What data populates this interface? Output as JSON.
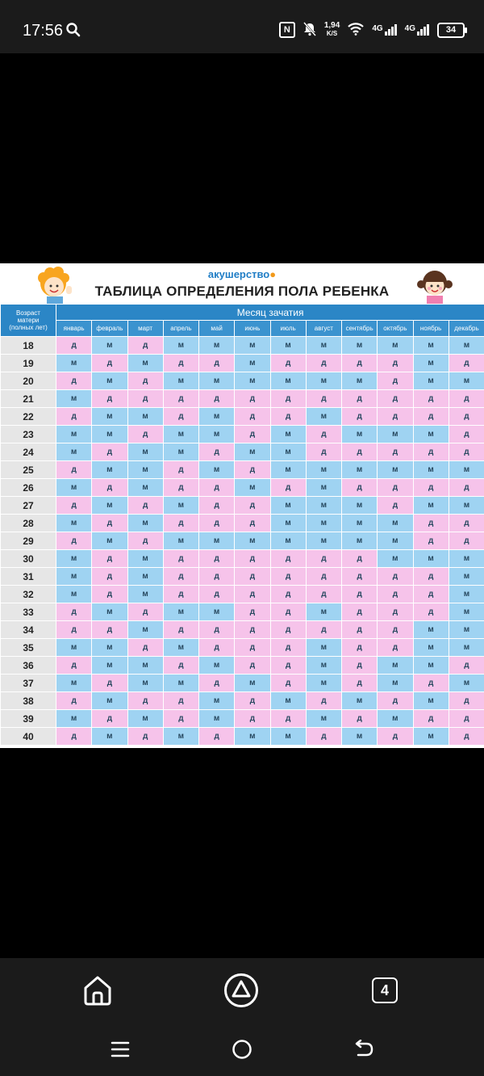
{
  "status_bar": {
    "time": "17:56",
    "net_speed_value": "1,94",
    "net_speed_unit": "K/S",
    "sim1": "4G",
    "sim2": "4G",
    "battery": "34",
    "icons": [
      "search-icon",
      "nfc-icon",
      "mute-icon",
      "wifi-icon",
      "signal-icon",
      "signal-icon",
      "battery-icon"
    ]
  },
  "image": {
    "brand": "акушерство",
    "title": "ТАБЛИЦА ОПРЕДЕЛЕНИЯ ПОЛА РЕБЕНКА",
    "age_header": [
      "Возраст",
      "матери",
      "(полных лет)"
    ],
    "month_header": "Месяц зачатия",
    "months": [
      "январь",
      "февраль",
      "март",
      "апрель",
      "май",
      "июнь",
      "июль",
      "август",
      "сентябрь",
      "октябрь",
      "ноябрь",
      "декабрь"
    ],
    "colors": {
      "boy": "#9fd3f2",
      "girl": "#f6c3ea",
      "header": "#2b86c6"
    },
    "rows": [
      {
        "age": "18",
        "cells": [
          "д",
          "м",
          "д",
          "м",
          "м",
          "м",
          "м",
          "м",
          "м",
          "м",
          "м",
          "м"
        ]
      },
      {
        "age": "19",
        "cells": [
          "м",
          "д",
          "м",
          "д",
          "д",
          "м",
          "д",
          "д",
          "д",
          "д",
          "м",
          "д"
        ]
      },
      {
        "age": "20",
        "cells": [
          "д",
          "м",
          "д",
          "м",
          "м",
          "м",
          "м",
          "м",
          "м",
          "д",
          "м",
          "м"
        ]
      },
      {
        "age": "21",
        "cells": [
          "м",
          "д",
          "д",
          "д",
          "д",
          "д",
          "д",
          "д",
          "д",
          "д",
          "д",
          "д"
        ]
      },
      {
        "age": "22",
        "cells": [
          "д",
          "м",
          "м",
          "д",
          "м",
          "д",
          "д",
          "м",
          "д",
          "д",
          "д",
          "д"
        ]
      },
      {
        "age": "23",
        "cells": [
          "м",
          "м",
          "д",
          "м",
          "м",
          "д",
          "м",
          "д",
          "м",
          "м",
          "м",
          "д"
        ]
      },
      {
        "age": "24",
        "cells": [
          "м",
          "д",
          "м",
          "м",
          "д",
          "м",
          "м",
          "д",
          "д",
          "д",
          "д",
          "д"
        ]
      },
      {
        "age": "25",
        "cells": [
          "д",
          "м",
          "м",
          "д",
          "м",
          "д",
          "м",
          "м",
          "м",
          "м",
          "м",
          "м"
        ]
      },
      {
        "age": "26",
        "cells": [
          "м",
          "д",
          "м",
          "д",
          "д",
          "м",
          "д",
          "м",
          "д",
          "д",
          "д",
          "д"
        ]
      },
      {
        "age": "27",
        "cells": [
          "д",
          "м",
          "д",
          "м",
          "д",
          "д",
          "м",
          "м",
          "м",
          "д",
          "м",
          "м"
        ]
      },
      {
        "age": "28",
        "cells": [
          "м",
          "д",
          "м",
          "д",
          "д",
          "д",
          "м",
          "м",
          "м",
          "м",
          "д",
          "д"
        ]
      },
      {
        "age": "29",
        "cells": [
          "д",
          "м",
          "д",
          "м",
          "м",
          "м",
          "м",
          "м",
          "м",
          "м",
          "д",
          "д"
        ]
      },
      {
        "age": "30",
        "cells": [
          "м",
          "д",
          "м",
          "д",
          "д",
          "д",
          "д",
          "д",
          "д",
          "м",
          "м",
          "м"
        ]
      },
      {
        "age": "31",
        "cells": [
          "м",
          "д",
          "м",
          "д",
          "д",
          "д",
          "д",
          "д",
          "д",
          "д",
          "д",
          "м"
        ]
      },
      {
        "age": "32",
        "cells": [
          "м",
          "д",
          "м",
          "д",
          "д",
          "д",
          "д",
          "д",
          "д",
          "д",
          "д",
          "м"
        ]
      },
      {
        "age": "33",
        "cells": [
          "д",
          "м",
          "д",
          "м",
          "м",
          "д",
          "д",
          "м",
          "д",
          "д",
          "д",
          "м"
        ]
      },
      {
        "age": "34",
        "cells": [
          "д",
          "д",
          "м",
          "д",
          "д",
          "д",
          "д",
          "д",
          "д",
          "д",
          "м",
          "м"
        ]
      },
      {
        "age": "35",
        "cells": [
          "м",
          "м",
          "д",
          "м",
          "д",
          "д",
          "д",
          "м",
          "д",
          "д",
          "м",
          "м"
        ]
      },
      {
        "age": "36",
        "cells": [
          "д",
          "м",
          "м",
          "д",
          "м",
          "д",
          "д",
          "м",
          "д",
          "м",
          "м",
          "д"
        ]
      },
      {
        "age": "37",
        "cells": [
          "м",
          "д",
          "м",
          "м",
          "д",
          "м",
          "д",
          "м",
          "д",
          "м",
          "д",
          "м"
        ]
      },
      {
        "age": "38",
        "cells": [
          "д",
          "м",
          "д",
          "д",
          "м",
          "д",
          "м",
          "д",
          "м",
          "д",
          "м",
          "д"
        ]
      },
      {
        "age": "39",
        "cells": [
          "м",
          "д",
          "м",
          "д",
          "м",
          "д",
          "д",
          "м",
          "д",
          "м",
          "д",
          "д"
        ]
      },
      {
        "age": "40",
        "cells": [
          "д",
          "м",
          "д",
          "м",
          "д",
          "м",
          "м",
          "д",
          "м",
          "д",
          "м",
          "д"
        ]
      }
    ]
  },
  "nav": {
    "tab_count": "4",
    "buttons": [
      "home-icon",
      "assistant-icon",
      "tabs-icon",
      "menu-icon",
      "circle-home-icon",
      "back-icon"
    ]
  }
}
